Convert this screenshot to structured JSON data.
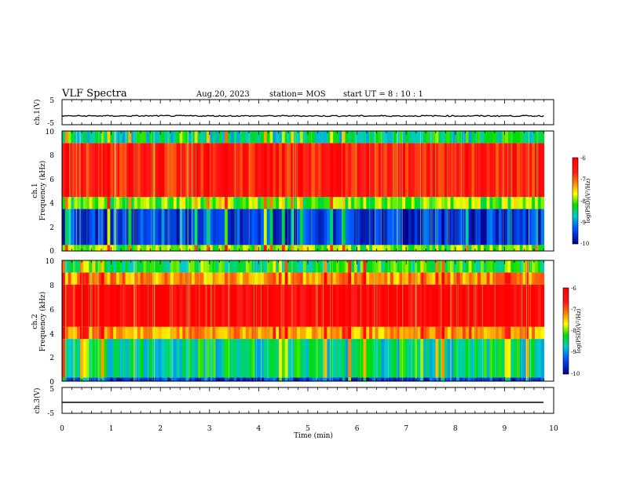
{
  "header": {
    "title": "VLF Spectra",
    "date": "Aug.20, 2023",
    "station": "station= MOS",
    "start_ut": "start  UT  =   8  : 10 : 1"
  },
  "colorbar": {
    "label": "log(PSD)(V²/Hz)",
    "ticks": [
      "-6",
      "-7",
      "-8",
      "-9",
      "-10"
    ],
    "colors": [
      "#ff1a1a",
      "#ff8800",
      "#ffff00",
      "#00dd00",
      "#00cccc",
      "#0055ff",
      "#00008b"
    ]
  },
  "chart_data": [
    {
      "type": "line",
      "panel": "ch1-waveform",
      "ylabel": "ch.1(V)",
      "ylim": [
        -5,
        5
      ],
      "ytick_labels": [
        "5",
        "-5"
      ],
      "x_range_min": [
        0,
        9.8
      ],
      "description_value_level": -1.5
    },
    {
      "type": "heatmap",
      "panel": "ch1-spectrogram",
      "ylabel_top": "ch.1",
      "ylabel_bottom": "Frequency (kHz)",
      "ylim": [
        0,
        10
      ],
      "ytick_labels": [
        "0",
        "2",
        "4",
        "6",
        "8",
        "10"
      ],
      "colorbar_range": [
        -10,
        -6
      ],
      "bands": [
        {
          "freq_range": [
            0,
            0.5
          ],
          "log_psd": -8
        },
        {
          "freq_range": [
            0.5,
            3.5
          ],
          "log_psd": -9.5
        },
        {
          "freq_range": [
            3.5,
            4.5
          ],
          "log_psd": -8
        },
        {
          "freq_range": [
            4.5,
            9.0
          ],
          "log_psd": -6.5
        },
        {
          "freq_range": [
            9.0,
            10
          ],
          "log_psd": -8.5
        }
      ]
    },
    {
      "type": "heatmap",
      "panel": "ch2-spectrogram",
      "ylabel_top": "ch.2",
      "ylabel_bottom": "Frequency (kHz)",
      "ylim": [
        0,
        10
      ],
      "ytick_labels": [
        "0",
        "2",
        "4",
        "6",
        "8",
        "10"
      ],
      "colorbar_range": [
        -10,
        -6
      ],
      "bands": [
        {
          "freq_range": [
            0,
            0.3
          ],
          "log_psd": -9.5
        },
        {
          "freq_range": [
            0.3,
            3.5
          ],
          "log_psd": -8.5
        },
        {
          "freq_range": [
            3.5,
            4.5
          ],
          "log_psd": -7.2
        },
        {
          "freq_range": [
            4.5,
            8.0
          ],
          "log_psd": -6.2
        },
        {
          "freq_range": [
            8.0,
            9.0
          ],
          "log_psd": -7.2
        },
        {
          "freq_range": [
            9.0,
            10
          ],
          "log_psd": -8.3
        }
      ]
    },
    {
      "type": "line",
      "panel": "ch3-waveform",
      "ylabel": "ch.3(V)",
      "ylim": [
        -5,
        5
      ],
      "ytick_labels": [
        "5",
        "-5"
      ],
      "x_range_min": [
        0,
        9.8
      ],
      "description_value_level": -1.5
    }
  ],
  "xaxis": {
    "label": "Time  (min)",
    "range": [
      0,
      10
    ],
    "tick_labels": [
      "0",
      "1",
      "2",
      "3",
      "4",
      "5",
      "6",
      "7",
      "8",
      "9",
      "10"
    ]
  }
}
